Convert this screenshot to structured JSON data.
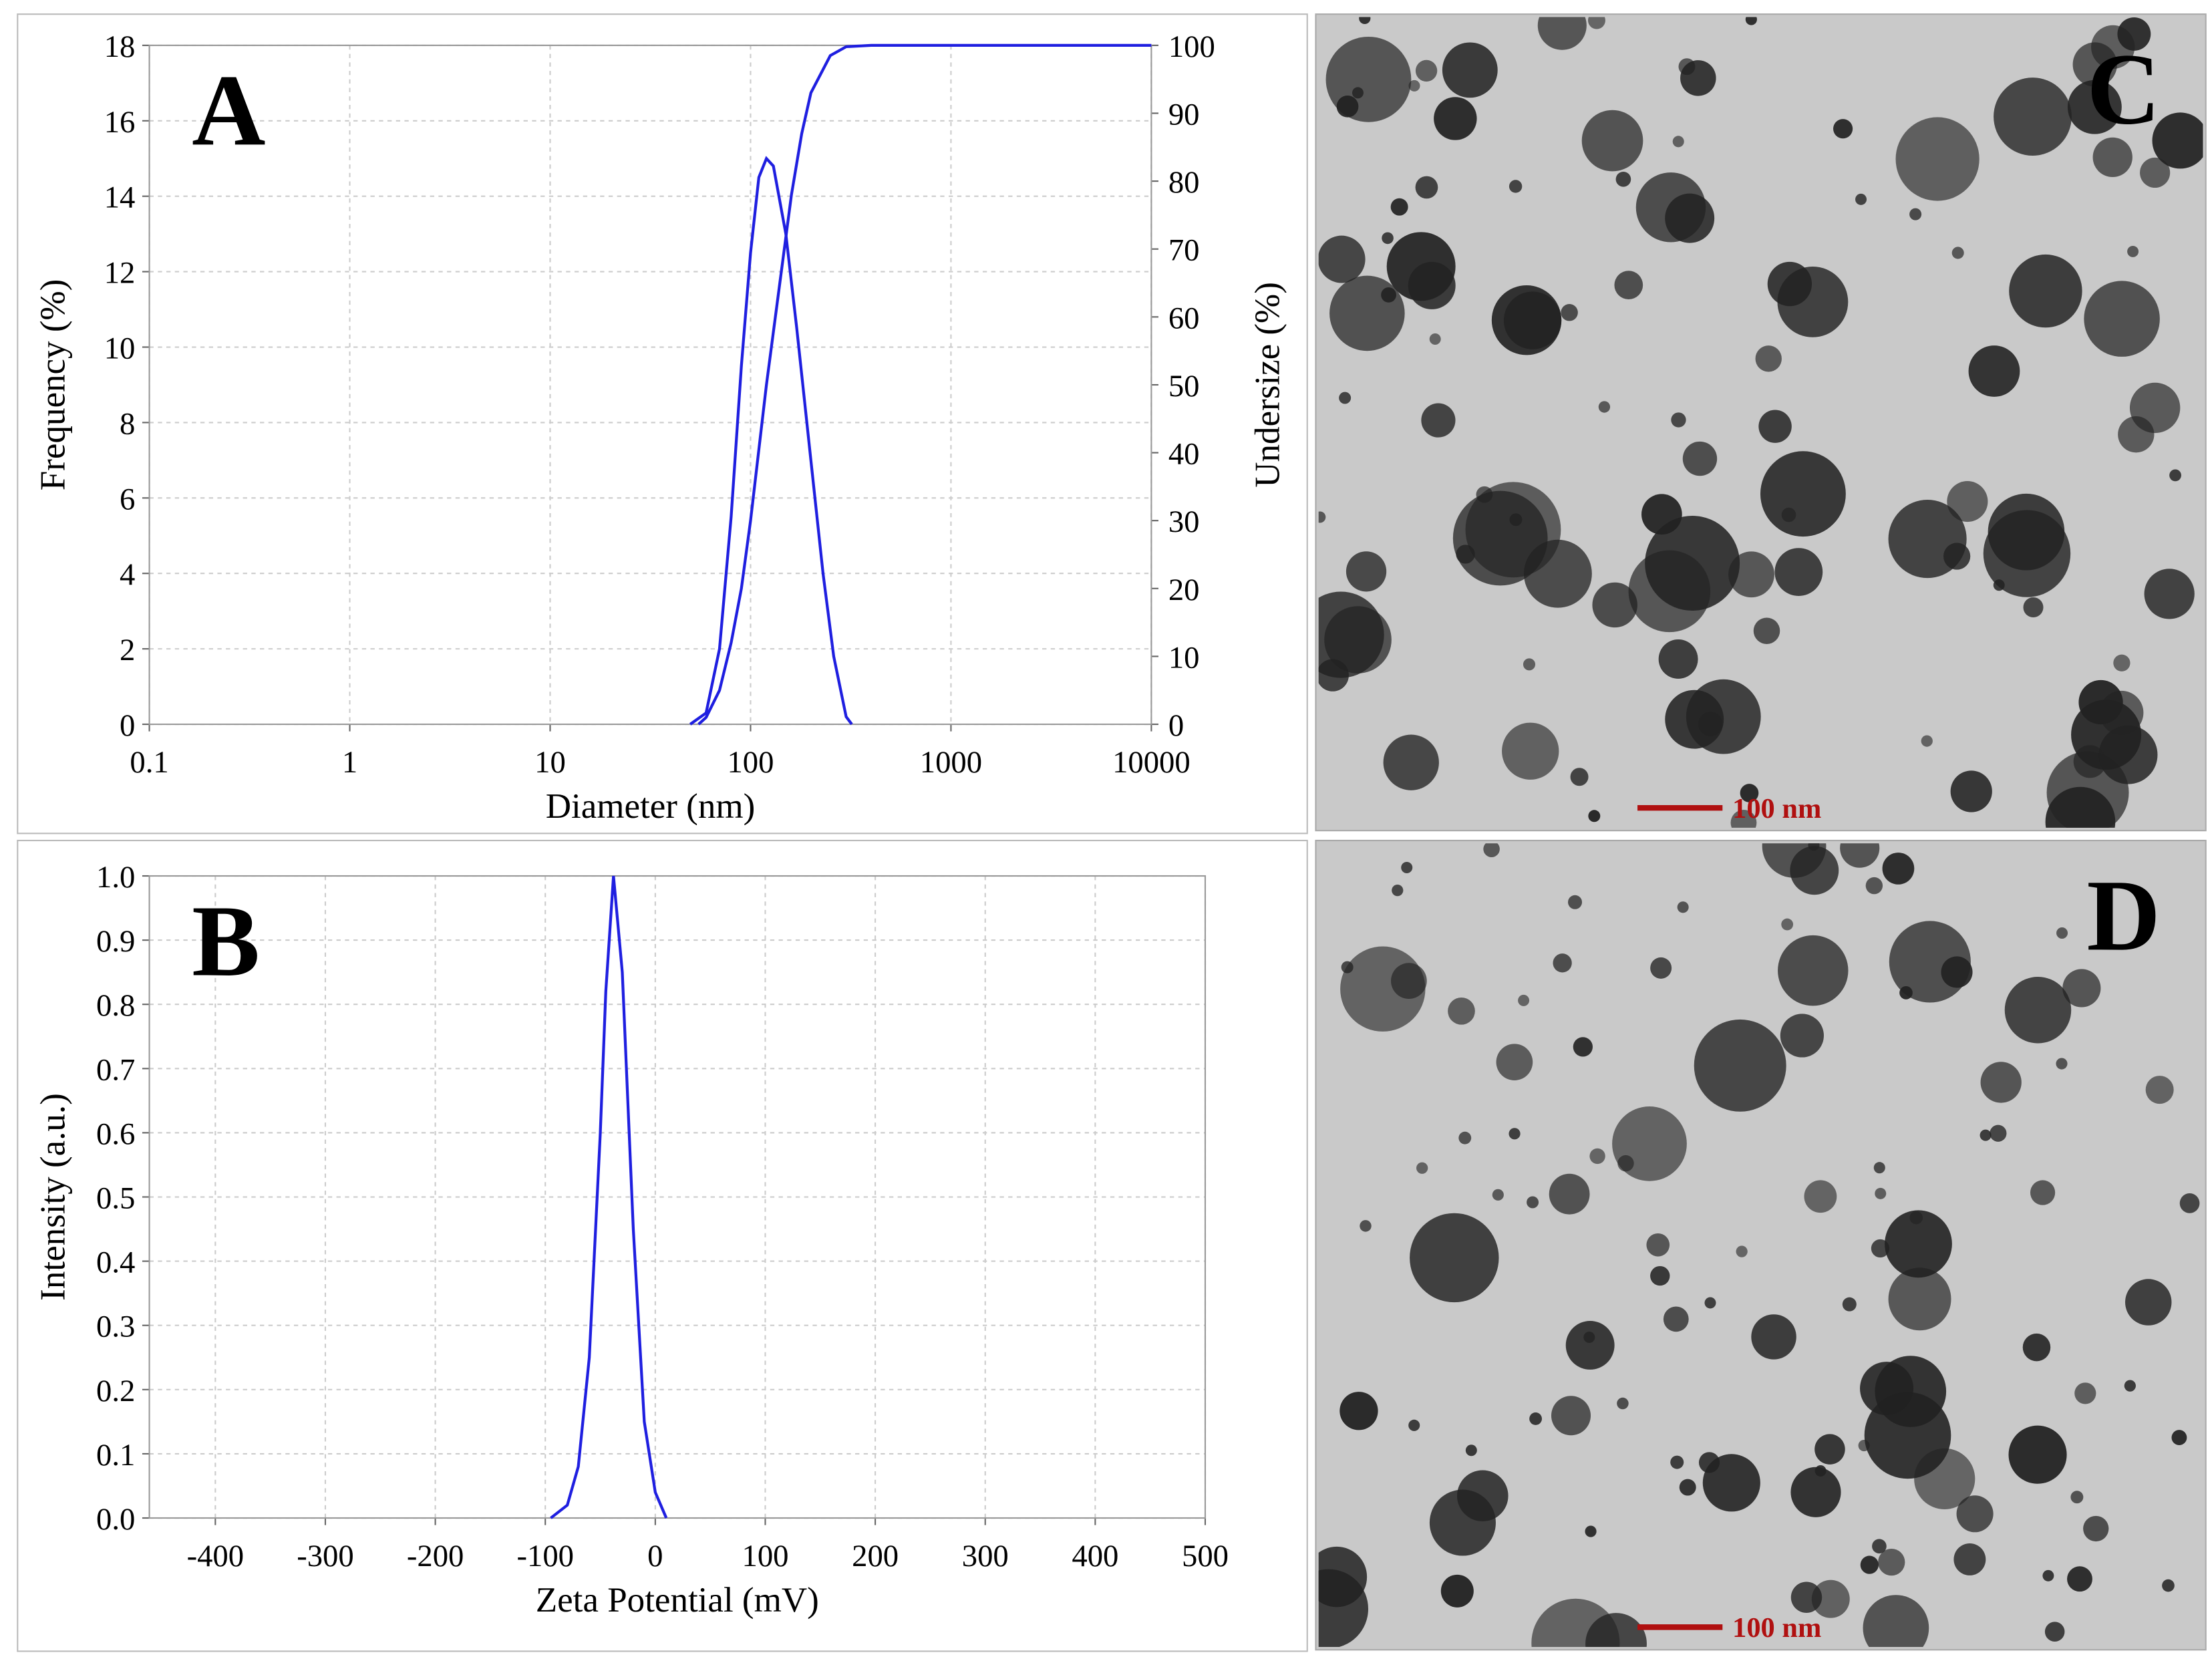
{
  "chart_data": [
    {
      "type": "line",
      "panel_label": "A",
      "xlabel": "Diameter (nm)",
      "ylabel": "Frequency (%)",
      "y2label": "Undersize (%)",
      "xscale": "log",
      "xlim": [
        0.1,
        10000
      ],
      "xticks": [
        0.1,
        1,
        10,
        100,
        1000,
        10000
      ],
      "ylim": [
        0,
        18
      ],
      "yticks": [
        0,
        2,
        4,
        6,
        8,
        10,
        12,
        14,
        16,
        18
      ],
      "y2lim": [
        0,
        100
      ],
      "y2ticks": [
        0,
        10,
        20,
        30,
        40,
        50,
        60,
        70,
        80,
        90,
        100
      ],
      "grid": true,
      "series": [
        {
          "color": "#1f1fe0",
          "x": [
            50,
            60,
            70,
            80,
            90,
            100,
            110,
            120,
            130,
            150,
            170,
            200,
            230,
            260,
            300,
            320
          ],
          "values": [
            0,
            0.3,
            2,
            5.5,
            9.5,
            12.5,
            14.5,
            15,
            14.8,
            13,
            10.5,
            7,
            4,
            1.8,
            0.2,
            0
          ]
        },
        {
          "color": "#1f1fe0",
          "axis": "y2",
          "x": [
            55,
            60,
            70,
            80,
            90,
            100,
            120,
            140,
            160,
            180,
            200,
            250,
            300,
            400,
            10000
          ],
          "values": [
            0,
            1,
            5,
            12,
            20,
            30,
            50,
            65,
            78,
            87,
            93,
            98.5,
            99.8,
            100,
            100
          ]
        }
      ]
    },
    {
      "type": "line",
      "panel_label": "B",
      "xlabel": "Zeta Potential (mV)",
      "ylabel": "Intensity (a.u.)",
      "xlim": [
        -460,
        500
      ],
      "xticks": [
        -400,
        -300,
        -200,
        -100,
        0,
        100,
        200,
        300,
        400,
        500
      ],
      "ylim": [
        0,
        1
      ],
      "yticks": [
        {
          "value": 0,
          "label": "0.0"
        },
        0.1,
        0.2,
        0.3,
        0.4,
        0.5,
        0.6,
        0.7,
        0.8,
        0.9,
        {
          "value": 1,
          "label": "1.0"
        }
      ],
      "grid": true,
      "series": [
        {
          "color": "#1f1fe0",
          "x": [
            -95,
            -80,
            -70,
            -60,
            -50,
            -45,
            -38,
            -30,
            -20,
            -10,
            0,
            10
          ],
          "values": [
            0,
            0.02,
            0.08,
            0.25,
            0.6,
            0.82,
            1,
            0.85,
            0.45,
            0.15,
            0.04,
            0
          ]
        }
      ]
    }
  ],
  "images": [
    {
      "label": "C",
      "scale_bar": "100 nm"
    },
    {
      "label": "D",
      "scale_bar": "100 nm"
    }
  ]
}
